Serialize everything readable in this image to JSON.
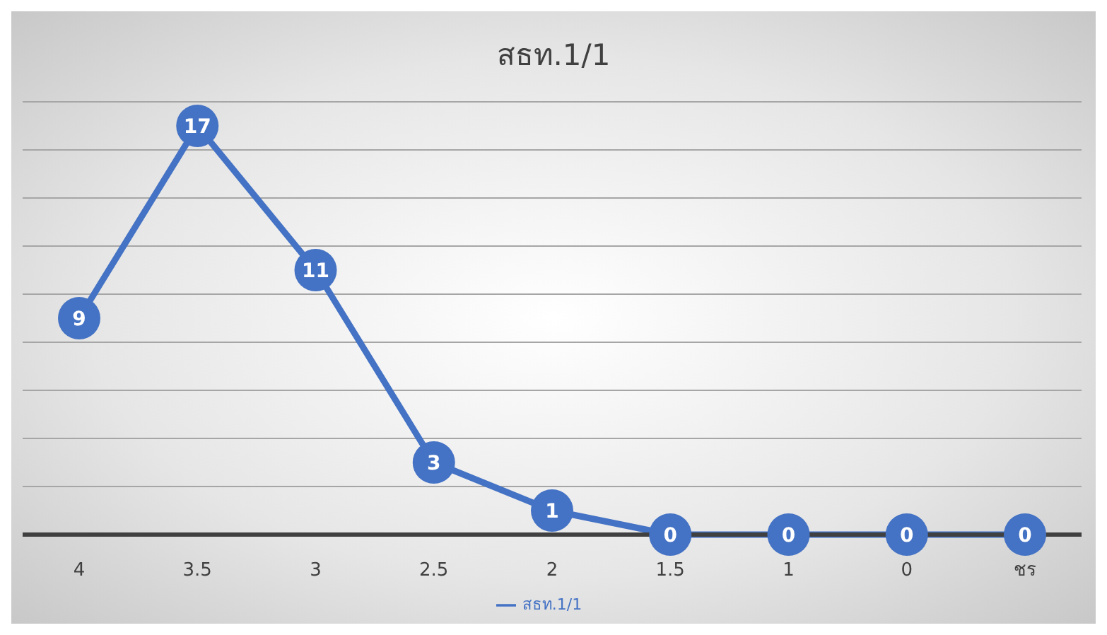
{
  "chart_data": {
    "type": "line",
    "title": "สธท.1/1",
    "categories": [
      "4",
      "3.5",
      "3",
      "2.5",
      "2",
      "1.5",
      "1",
      "0",
      "ชร"
    ],
    "series": [
      {
        "name": "สธท.1/1",
        "color": "#4472c4",
        "values": [
          9,
          17,
          11,
          3,
          1,
          0,
          0,
          0,
          0
        ]
      }
    ],
    "data_labels": true,
    "tick_labels": "x",
    "grid": "y",
    "legend": "bottom",
    "marker": "circle",
    "line_style": "solid"
  }
}
